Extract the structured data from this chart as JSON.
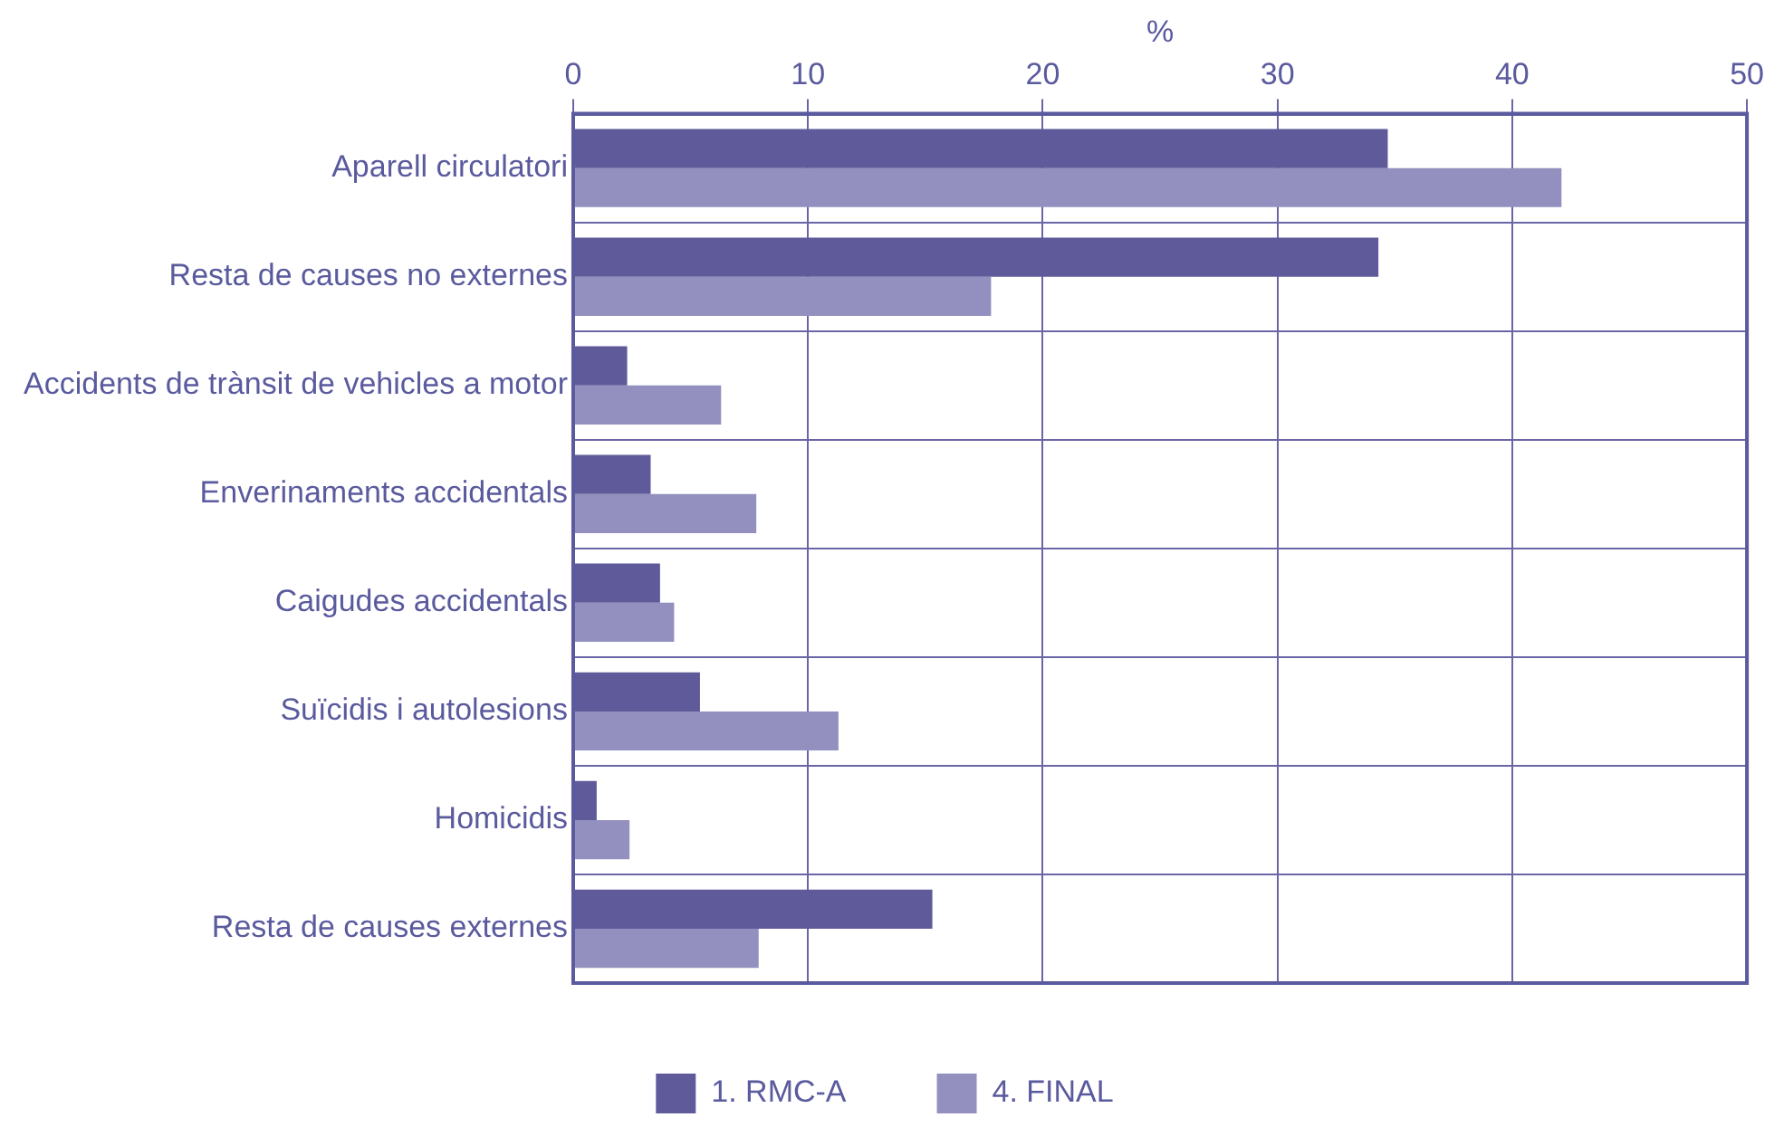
{
  "chart_data": {
    "type": "bar",
    "orientation": "horizontal",
    "xlabel": "%",
    "categories": [
      "Aparell circulatori",
      "Resta de causes no externes",
      "Accidents de trànsit de vehicles a motor",
      "Enverinaments accidentals",
      "Caigudes accidentals",
      "Suïcidis i autolesions",
      "Homicidis",
      "Resta de causes externes"
    ],
    "series": [
      {
        "name": "1. RMC-A",
        "color": "#5f5b9a",
        "values": [
          34.7,
          34.3,
          2.3,
          3.3,
          3.7,
          5.4,
          1.0,
          15.3
        ]
      },
      {
        "name": "4. FINAL",
        "color": "#9390bf",
        "values": [
          42.1,
          17.8,
          6.3,
          7.8,
          4.3,
          11.3,
          2.4,
          7.9
        ]
      }
    ],
    "xlim": [
      0,
      50
    ],
    "xticks": [
      0,
      10,
      20,
      30,
      40,
      50
    ],
    "grid": true,
    "legend": "bottom"
  }
}
